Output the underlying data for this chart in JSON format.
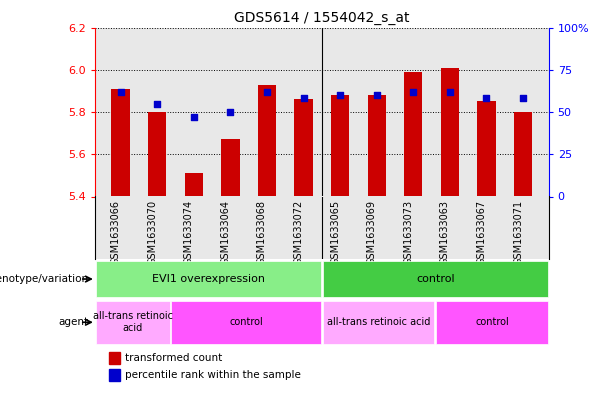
{
  "title": "GDS5614 / 1554042_s_at",
  "samples": [
    "GSM1633066",
    "GSM1633070",
    "GSM1633074",
    "GSM1633064",
    "GSM1633068",
    "GSM1633072",
    "GSM1633065",
    "GSM1633069",
    "GSM1633073",
    "GSM1633063",
    "GSM1633067",
    "GSM1633071"
  ],
  "bar_values": [
    5.91,
    5.8,
    5.51,
    5.67,
    5.93,
    5.86,
    5.88,
    5.88,
    5.99,
    6.01,
    5.85,
    5.8
  ],
  "dot_values": [
    62,
    55,
    47,
    50,
    62,
    58,
    60,
    60,
    62,
    62,
    58,
    58
  ],
  "bar_bottom": 5.4,
  "ylim_left": [
    5.4,
    6.2
  ],
  "ylim_right": [
    0,
    100
  ],
  "yticks_left": [
    5.4,
    5.6,
    5.8,
    6.0,
    6.2
  ],
  "yticks_right": [
    0,
    25,
    50,
    75,
    100
  ],
  "ytick_labels_right": [
    "0",
    "25",
    "50",
    "75",
    "100%"
  ],
  "bar_color": "#cc0000",
  "dot_color": "#0000cc",
  "plot_bg": "#e8e8e8",
  "geno_configs": [
    {
      "text": "EVI1 overexpression",
      "xstart": 0,
      "xend": 6,
      "color": "#88ee88"
    },
    {
      "text": "control",
      "xstart": 6,
      "xend": 12,
      "color": "#44cc44"
    }
  ],
  "agent_configs": [
    {
      "text": "all-trans retinoic\nacid",
      "xstart": 0,
      "xend": 2,
      "color": "#ffaaff"
    },
    {
      "text": "control",
      "xstart": 2,
      "xend": 6,
      "color": "#ff55ff"
    },
    {
      "text": "all-trans retinoic acid",
      "xstart": 6,
      "xend": 9,
      "color": "#ffaaff"
    },
    {
      "text": "control",
      "xstart": 9,
      "xend": 12,
      "color": "#ff55ff"
    }
  ]
}
